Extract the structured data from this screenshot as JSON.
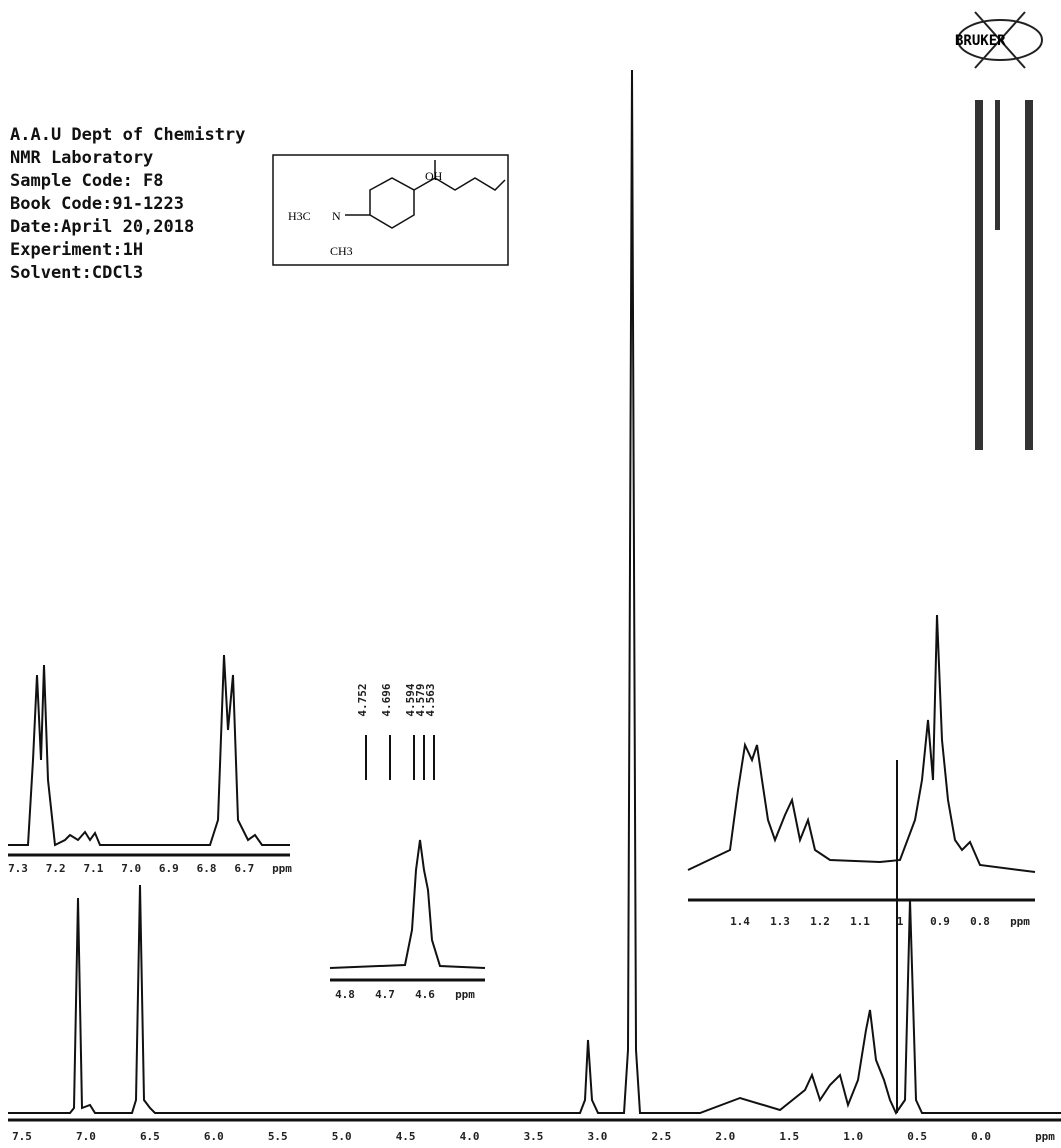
{
  "header": {
    "lines": [
      "A.A.U Dept of Chemistry",
      "NMR Laboratory",
      "Sample Code: F8",
      "Book Code:91-1223",
      "Date:April 20,2018",
      "Experiment:1H",
      "Solvent:CDCl3"
    ]
  },
  "logo": "BRUKER",
  "structure": {
    "hydroxyl": "OH",
    "methyl_top": "H3C",
    "nitrogen": "N",
    "methyl_bottom": "CH3"
  },
  "main_axis": {
    "ticks": [
      "7.5",
      "7.0",
      "6.5",
      "6.0",
      "5.5",
      "5.0",
      "4.5",
      "4.0",
      "3.5",
      "3.0",
      "2.5",
      "2.0",
      "1.5",
      "1.0",
      "0.5",
      "0.0",
      "ppm"
    ]
  },
  "inset_aromatic": {
    "ticks": [
      "7.3",
      "7.2",
      "7.1",
      "7.0",
      "6.9",
      "6.8",
      "6.7",
      "ppm"
    ]
  },
  "inset_methine": {
    "ticks": [
      "4.8",
      "4.7",
      "4.6",
      "ppm"
    ],
    "peak_labels": [
      "4.752",
      "4.696",
      "4.594",
      "4.579",
      "4.563"
    ]
  },
  "inset_aliphatic": {
    "ticks": [
      "1.4",
      "1.3",
      "1.2",
      "1.1",
      "1",
      "0.9",
      "0.8",
      "ppm"
    ]
  }
}
